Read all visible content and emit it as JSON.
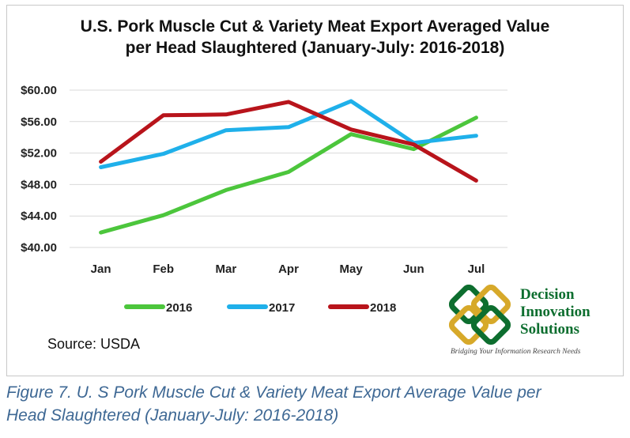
{
  "chart_data": {
    "type": "line",
    "title_line1": "U.S. Pork Muscle Cut & Variety Meat Export Averaged Value",
    "title_line2": "per Head Slaughtered (January-July: 2016-2018)",
    "categories": [
      "Jan",
      "Feb",
      "Mar",
      "Apr",
      "May",
      "Jun",
      "Jul"
    ],
    "ylim": [
      40,
      60
    ],
    "yticks": [
      "$40.00",
      "$44.00",
      "$48.00",
      "$52.00",
      "$56.00",
      "$60.00"
    ],
    "ytick_values": [
      40,
      44,
      48,
      52,
      56,
      60
    ],
    "grid": true,
    "legend_position": "bottom",
    "series": [
      {
        "name": "2016",
        "color": "#4cc63c",
        "values": [
          41.9,
          44.1,
          47.3,
          49.6,
          54.4,
          52.5,
          56.5
        ]
      },
      {
        "name": "2017",
        "color": "#1fb0ea",
        "values": [
          50.2,
          51.9,
          54.9,
          55.3,
          58.6,
          53.3,
          54.2
        ]
      },
      {
        "name": "2018",
        "color": "#b8141b",
        "values": [
          50.9,
          56.8,
          56.9,
          58.5,
          55.0,
          53.1,
          48.5
        ]
      }
    ]
  },
  "source": "Source: USDA",
  "logo": {
    "name_line1": "Decision",
    "name_line2": "Innovation",
    "name_line3": "Solutions",
    "tagline": "Bridging Your Information Research Needs",
    "colors": {
      "green": "#0d6e2f",
      "gold": "#d7a92a"
    }
  },
  "caption_line1": "Figure 7. U. S Pork Muscle Cut & Variety Meat Export Average Value per",
  "caption_line2": "Head Slaughtered (January-July: 2016-2018)"
}
